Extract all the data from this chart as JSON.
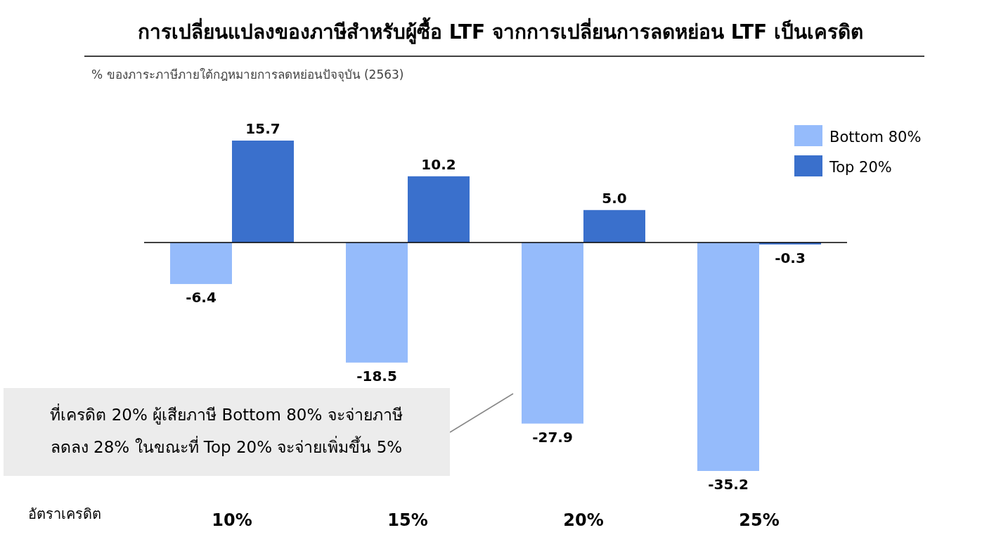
{
  "chart_data": {
    "type": "bar",
    "title": "การเปลี่ยนแปลงของภาษีสำหรับผู้ซื้อ LTF จากการเปลี่ยนการลดหย่อน LTF เป็นเครดิต",
    "subtitle": "% ของภาระภาษีภายใต้กฎหมายการลดหย่อนปัจจุบัน (2563)",
    "xlabel": "อัตราเครดิต",
    "categories": [
      "10%",
      "15%",
      "20%",
      "25%"
    ],
    "series": [
      {
        "name": "Bottom 80%",
        "color": "#95bbfb",
        "values": [
          -6.4,
          -18.5,
          -27.9,
          -35.2
        ],
        "value_labels": [
          "-6.4",
          "-18.5",
          "-27.9",
          "-35.2"
        ]
      },
      {
        "name": "Top 20%",
        "color": "#3a70cc",
        "values": [
          15.7,
          10.2,
          5.0,
          -0.3
        ],
        "value_labels": [
          "15.7",
          "10.2",
          "5.0",
          "-0.3"
        ]
      }
    ],
    "tick_labels": "x",
    "legend": "top right",
    "annotations": [
      "ที่เครดิต 20% ผู้เสียภาษี Bottom 80% จะจ่ายภาษี\nลดลง 28% ในขณะที่ Top 20% จะจ่ายเพิ่มขึ้น 5%"
    ]
  }
}
